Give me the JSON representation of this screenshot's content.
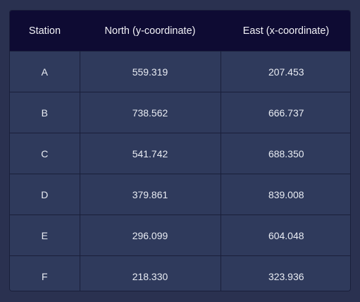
{
  "table": {
    "headers": [
      "Station",
      "North (y-coordinate)",
      "East (x-coordinate)"
    ],
    "rows": [
      [
        "A",
        "559.319",
        "207.453"
      ],
      [
        "B",
        "738.562",
        "666.737"
      ],
      [
        "C",
        "541.742",
        "688.350"
      ],
      [
        "D",
        "379.861",
        "839.008"
      ],
      [
        "E",
        "296.099",
        "604.048"
      ],
      [
        "F",
        "218.330",
        "323.936"
      ]
    ]
  }
}
